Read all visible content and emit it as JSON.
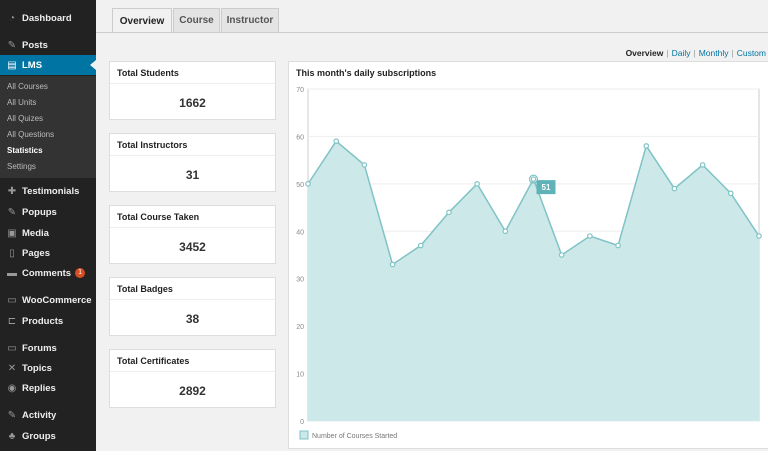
{
  "sidebar": {
    "items": [
      {
        "label": "Dashboard",
        "icon": "dashboard-icon",
        "glyph": "◔"
      },
      {
        "label": "Posts",
        "icon": "pin-icon",
        "glyph": "✎"
      },
      {
        "label": "LMS",
        "icon": "lms-icon",
        "glyph": "▤"
      },
      {
        "label": "Testimonials",
        "icon": "plus-icon",
        "glyph": "✚"
      },
      {
        "label": "Popups",
        "icon": "pin-icon",
        "glyph": "✎"
      },
      {
        "label": "Media",
        "icon": "media-icon",
        "glyph": "▣"
      },
      {
        "label": "Pages",
        "icon": "pages-icon",
        "glyph": "▯"
      },
      {
        "label": "Comments",
        "icon": "comment-icon",
        "glyph": "▬",
        "badge": "1"
      },
      {
        "label": "WooCommerce",
        "icon": "woocommerce-icon",
        "glyph": "▭"
      },
      {
        "label": "Products",
        "icon": "cart-icon",
        "glyph": "⊏"
      },
      {
        "label": "Forums",
        "icon": "forums-icon",
        "glyph": "▭"
      },
      {
        "label": "Topics",
        "icon": "topics-icon",
        "glyph": "✕"
      },
      {
        "label": "Replies",
        "icon": "replies-icon",
        "glyph": "◉"
      },
      {
        "label": "Activity",
        "icon": "activity-icon",
        "glyph": "✎"
      },
      {
        "label": "Groups",
        "icon": "groups-icon",
        "glyph": "♣"
      }
    ],
    "submenu": [
      "All Courses",
      "All Units",
      "All Quizes",
      "All Questions",
      "Statistics",
      "Settings"
    ],
    "current_submenu": "Statistics"
  },
  "tabs": [
    "Overview",
    "Course",
    "Instructor"
  ],
  "active_tab": "Overview",
  "subnav": [
    "Overview",
    "Daily",
    "Monthly",
    "Custom"
  ],
  "active_subnav": "Overview",
  "stats": [
    {
      "label": "Total Students",
      "value": "1662"
    },
    {
      "label": "Total Instructors",
      "value": "31"
    },
    {
      "label": "Total Course Taken",
      "value": "3452"
    },
    {
      "label": "Total Badges",
      "value": "38"
    },
    {
      "label": "Total Certificates",
      "value": "2892"
    }
  ],
  "colors": {
    "sidebar_bg": "#222222",
    "active_menu": "#0074a2",
    "badge": "#d54e21",
    "chart_fill": "#cde8e9",
    "chart_line": "#7fc3c6",
    "tooltip": "#5fb3b8"
  },
  "chart_data": {
    "type": "area",
    "title": "This month's daily subscriptions",
    "ylim": [
      0,
      70
    ],
    "yticks": [
      0,
      10,
      20,
      30,
      40,
      50,
      60,
      70
    ],
    "grid": true,
    "legend_position": "bottom-left",
    "series": [
      {
        "name": "Number of Courses Started",
        "values": [
          50,
          59,
          54,
          33,
          37,
          44,
          50,
          40,
          51,
          35,
          39,
          37,
          58,
          49,
          54,
          48,
          39
        ]
      }
    ],
    "highlight": {
      "index": 8,
      "label": "51"
    }
  }
}
